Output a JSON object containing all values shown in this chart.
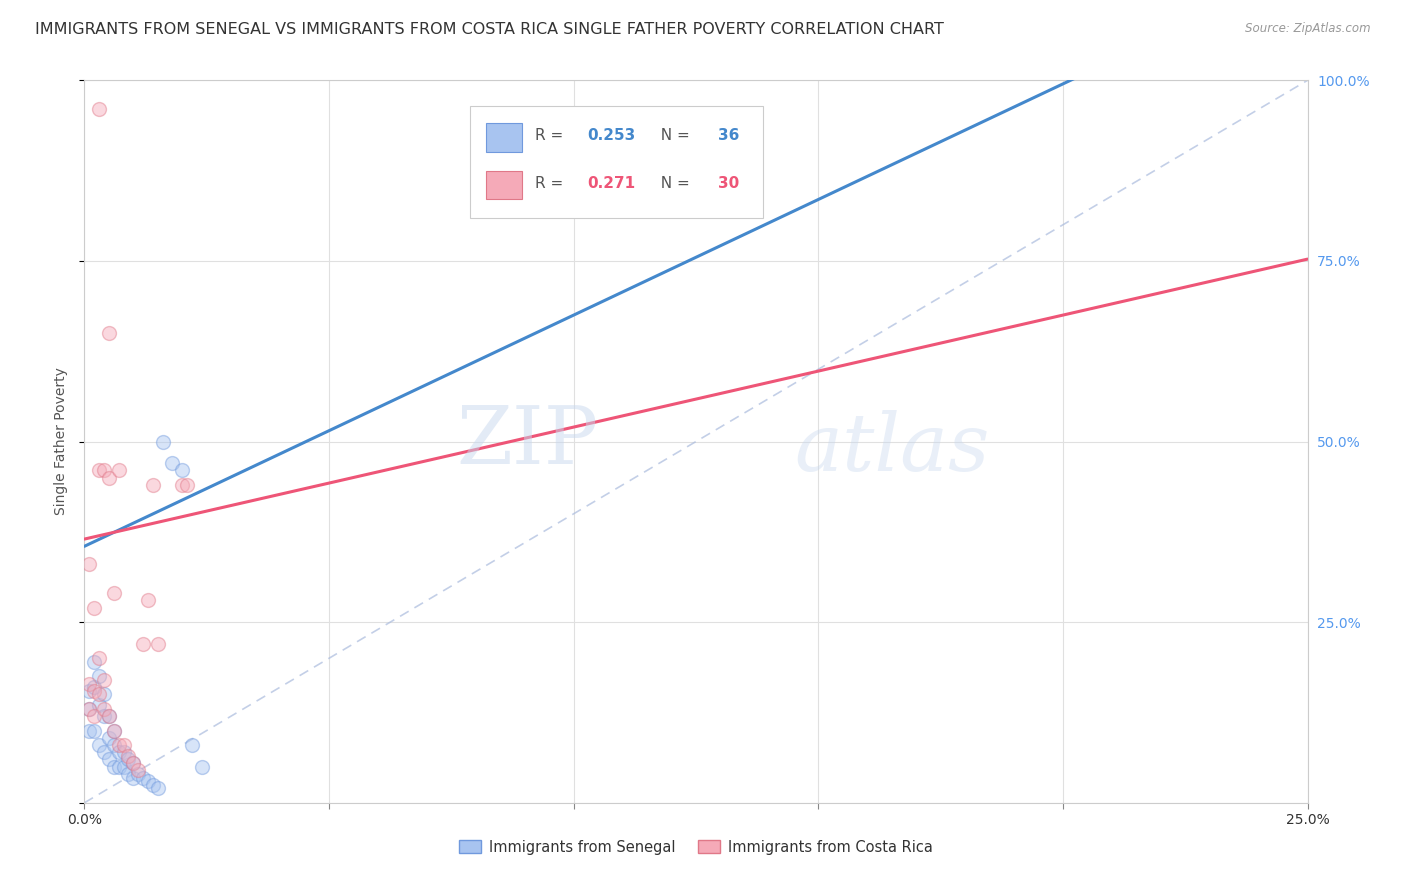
{
  "title": "IMMIGRANTS FROM SENEGAL VS IMMIGRANTS FROM COSTA RICA SINGLE FATHER POVERTY CORRELATION CHART",
  "source": "Source: ZipAtlas.com",
  "ylabel": "Single Father Poverty",
  "xlim": [
    0.0,
    0.25
  ],
  "ylim": [
    0.0,
    1.0
  ],
  "xticks": [
    0.0,
    0.05,
    0.1,
    0.15,
    0.2,
    0.25
  ],
  "yticks": [
    0.0,
    0.25,
    0.5,
    0.75,
    1.0
  ],
  "xtick_labels": [
    "0.0%",
    "",
    "",
    "",
    "",
    "25.0%"
  ],
  "ytick_labels_right": [
    "",
    "25.0%",
    "50.0%",
    "75.0%",
    "100.0%"
  ],
  "senegal_color": "#a8c4f0",
  "costarica_color": "#f5aab8",
  "senegal_edge": "#7099dd",
  "costarica_edge": "#e07888",
  "trend_senegal_color": "#4488cc",
  "trend_costarica_color": "#ee5577",
  "diagonal_color": "#aabbdd",
  "watermark_zip": "ZIP",
  "watermark_atlas": "atlas",
  "background_color": "#ffffff",
  "grid_color": "#e0e0e0",
  "senegal_x": [
    0.001,
    0.001,
    0.001,
    0.002,
    0.002,
    0.002,
    0.003,
    0.003,
    0.003,
    0.004,
    0.004,
    0.004,
    0.005,
    0.005,
    0.005,
    0.006,
    0.006,
    0.006,
    0.007,
    0.007,
    0.008,
    0.008,
    0.009,
    0.009,
    0.01,
    0.01,
    0.011,
    0.012,
    0.013,
    0.014,
    0.015,
    0.016,
    0.018,
    0.02,
    0.022,
    0.024
  ],
  "senegal_y": [
    0.155,
    0.13,
    0.1,
    0.195,
    0.16,
    0.1,
    0.175,
    0.135,
    0.08,
    0.15,
    0.12,
    0.07,
    0.12,
    0.09,
    0.06,
    0.1,
    0.08,
    0.05,
    0.07,
    0.05,
    0.07,
    0.05,
    0.06,
    0.04,
    0.055,
    0.035,
    0.04,
    0.035,
    0.03,
    0.025,
    0.02,
    0.5,
    0.47,
    0.46,
    0.08,
    0.05
  ],
  "costarica_x": [
    0.001,
    0.001,
    0.002,
    0.002,
    0.003,
    0.003,
    0.003,
    0.004,
    0.004,
    0.005,
    0.005,
    0.006,
    0.006,
    0.007,
    0.007,
    0.008,
    0.009,
    0.01,
    0.011,
    0.012,
    0.013,
    0.014,
    0.015,
    0.02,
    0.021,
    0.001,
    0.002,
    0.003,
    0.004,
    0.005
  ],
  "costarica_y": [
    0.165,
    0.13,
    0.155,
    0.12,
    0.96,
    0.46,
    0.15,
    0.46,
    0.13,
    0.45,
    0.12,
    0.29,
    0.1,
    0.46,
    0.08,
    0.08,
    0.065,
    0.055,
    0.045,
    0.22,
    0.28,
    0.44,
    0.22,
    0.44,
    0.44,
    0.33,
    0.27,
    0.2,
    0.17,
    0.65
  ],
  "trend_senegal_intercept": 0.355,
  "trend_senegal_slope": 3.2,
  "trend_costarica_intercept": 0.365,
  "trend_costarica_slope": 1.55,
  "marker_size": 100,
  "alpha": 0.45,
  "title_fontsize": 11.5,
  "axis_fontsize": 10,
  "tick_fontsize": 10
}
